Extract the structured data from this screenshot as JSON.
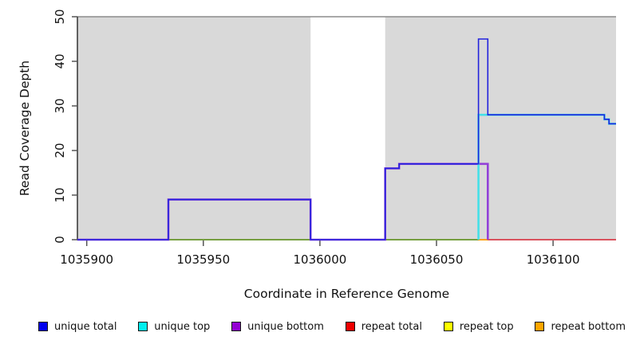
{
  "chart_data": {
    "type": "line",
    "style": "step",
    "title": "",
    "xlabel": "Coordinate in Reference Genome",
    "ylabel": "Read Coverage Depth",
    "xlim": [
      1035896,
      1036127
    ],
    "ylim": [
      0,
      50
    ],
    "x_ticks": [
      1035900,
      1035950,
      1036000,
      1036050,
      1036100
    ],
    "y_ticks": [
      0,
      10,
      20,
      30,
      40,
      50
    ],
    "grid": false,
    "legend_position": "bottom",
    "plot_background": "#d9d9d9",
    "highlight_band": {
      "from": 1035996,
      "to": 1036028,
      "color": "#ffffff"
    },
    "series": [
      {
        "name": "unique total",
        "color": "#0000EE",
        "steps": [
          {
            "from": 1035896,
            "to": 1035935,
            "depth": 0
          },
          {
            "from": 1035935,
            "to": 1035996,
            "depth": 9
          },
          {
            "from": 1035996,
            "to": 1036028,
            "depth": 0
          },
          {
            "from": 1036028,
            "to": 1036034,
            "depth": 16
          },
          {
            "from": 1036034,
            "to": 1036068,
            "depth": 17
          },
          {
            "from": 1036068,
            "to": 1036072,
            "depth": 45
          },
          {
            "from": 1036072,
            "to": 1036122,
            "depth": 28
          },
          {
            "from": 1036122,
            "to": 1036124,
            "depth": 27
          },
          {
            "from": 1036124,
            "to": 1036127,
            "depth": 26
          }
        ]
      },
      {
        "name": "unique top",
        "color": "#00EEEE",
        "steps": [
          {
            "from": 1035896,
            "to": 1036068,
            "depth": 0
          },
          {
            "from": 1036068,
            "to": 1036122,
            "depth": 28
          },
          {
            "from": 1036122,
            "to": 1036124,
            "depth": 27
          },
          {
            "from": 1036124,
            "to": 1036127,
            "depth": 26
          }
        ]
      },
      {
        "name": "unique bottom",
        "color": "#9400D3",
        "steps": [
          {
            "from": 1035896,
            "to": 1035935,
            "depth": 0
          },
          {
            "from": 1035935,
            "to": 1035996,
            "depth": 9
          },
          {
            "from": 1035996,
            "to": 1036028,
            "depth": 0
          },
          {
            "from": 1036028,
            "to": 1036034,
            "depth": 16
          },
          {
            "from": 1036034,
            "to": 1036072,
            "depth": 17
          },
          {
            "from": 1036072,
            "to": 1036127,
            "depth": 0
          }
        ]
      },
      {
        "name": "repeat total",
        "color": "#EE0000",
        "steps": [
          {
            "from": 1035896,
            "to": 1036127,
            "depth": 0
          }
        ]
      },
      {
        "name": "repeat top",
        "color": "#FFFF00",
        "steps": [
          {
            "from": 1035896,
            "to": 1036127,
            "depth": 0
          }
        ]
      },
      {
        "name": "repeat bottom",
        "color": "#FFA500",
        "steps": [
          {
            "from": 1035896,
            "to": 1036127,
            "depth": 0
          }
        ]
      }
    ],
    "render_polylines": [
      {
        "name": "repeat-top-line",
        "color": "#FFFF00",
        "width": 1.5,
        "points": [
          [
            1035896,
            0
          ],
          [
            1036127,
            0
          ]
        ]
      },
      {
        "name": "repeat-bottom-line",
        "color": "#FFA500",
        "width": 1.5,
        "points": [
          [
            1035896,
            0
          ],
          [
            1036127,
            0
          ]
        ]
      },
      {
        "name": "repeat-total-line",
        "color": "#EE0000",
        "width": 1.5,
        "points": [
          [
            1035896,
            0
          ],
          [
            1036127,
            0
          ]
        ]
      },
      {
        "name": "baseline-green-blend-line",
        "color": "#4CB24C",
        "width": 1.6,
        "points": [
          [
            1035935,
            0
          ],
          [
            1036068,
            0
          ]
        ]
      },
      {
        "name": "baseline-crimson-blend-line",
        "color": "#D65068",
        "width": 1.8,
        "points": [
          [
            1036072,
            0
          ],
          [
            1036127,
            0
          ]
        ]
      },
      {
        "name": "baseline-orange-visible-line",
        "color": "#FFA500",
        "width": 1.8,
        "points": [
          [
            1036068,
            0
          ],
          [
            1036072,
            0
          ]
        ]
      },
      {
        "name": "unique-bottom-line",
        "color": "#9340D8",
        "width": 2.6,
        "points": [
          [
            1035896,
            0
          ],
          [
            1035935,
            0
          ],
          [
            1035935,
            9
          ],
          [
            1035996,
            9
          ],
          [
            1035996,
            0
          ],
          [
            1036028,
            0
          ],
          [
            1036028,
            16
          ],
          [
            1036034,
            16
          ],
          [
            1036034,
            17
          ],
          [
            1036072,
            17
          ],
          [
            1036072,
            0
          ]
        ]
      },
      {
        "name": "unique-top-line",
        "color": "#45E0E8",
        "width": 2.6,
        "points": [
          [
            1036068,
            0
          ],
          [
            1036068,
            28
          ],
          [
            1036122,
            28
          ],
          [
            1036122,
            27
          ],
          [
            1036124,
            27
          ],
          [
            1036124,
            26
          ],
          [
            1036127,
            26
          ]
        ]
      },
      {
        "name": "unique-total-line",
        "color": "#2222DD",
        "width": 1.6,
        "points": [
          [
            1035896,
            0
          ],
          [
            1035935,
            0
          ],
          [
            1035935,
            9
          ],
          [
            1035996,
            9
          ],
          [
            1035996,
            0
          ],
          [
            1036028,
            0
          ],
          [
            1036028,
            16
          ],
          [
            1036034,
            16
          ],
          [
            1036034,
            17
          ],
          [
            1036068,
            17
          ],
          [
            1036068,
            45
          ],
          [
            1036072,
            45
          ],
          [
            1036072,
            28
          ],
          [
            1036122,
            28
          ],
          [
            1036122,
            27
          ],
          [
            1036124,
            27
          ],
          [
            1036124,
            26
          ],
          [
            1036127,
            26
          ]
        ]
      }
    ]
  },
  "legend": {
    "items": [
      {
        "label": "unique total",
        "color": "#0000EE"
      },
      {
        "label": "unique top",
        "color": "#00EEEE"
      },
      {
        "label": "unique bottom",
        "color": "#9400D3"
      },
      {
        "label": "repeat total",
        "color": "#EE0000"
      },
      {
        "label": "repeat top",
        "color": "#FFFF00"
      },
      {
        "label": "repeat bottom",
        "color": "#FFA500"
      }
    ]
  },
  "colors": {
    "plot_background": "#d9d9d9",
    "band": "#ffffff",
    "top_border": "#8c8c8c",
    "axis": "#333333",
    "tick": "#555555",
    "text": "#111111"
  }
}
